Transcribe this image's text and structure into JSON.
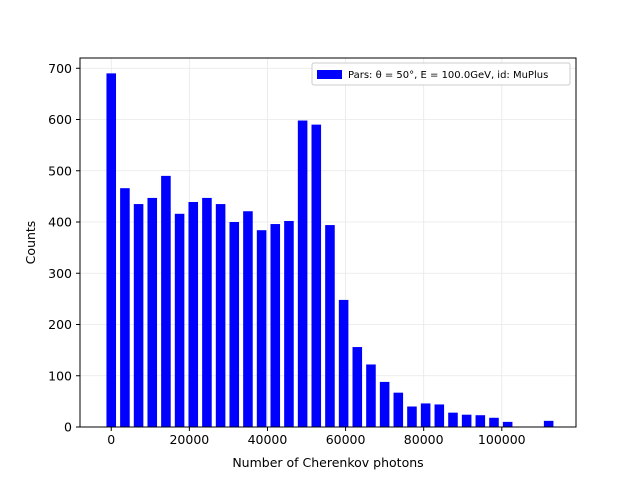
{
  "chart_data": {
    "type": "bar",
    "xlabel": "Number of Cherenkov photons",
    "ylabel": "Counts",
    "xlim": [
      -8000,
      119000
    ],
    "ylim": [
      0,
      720
    ],
    "grid": true,
    "legend_position": "top-right",
    "bar_color": "#0000ff",
    "bin_width": 3500,
    "bar_width": 2450,
    "x_ticks": [
      0,
      20000,
      40000,
      60000,
      80000,
      100000
    ],
    "x_tick_labels": [
      "0",
      "20000",
      "40000",
      "60000",
      "80000",
      "100000"
    ],
    "y_ticks": [
      0,
      100,
      200,
      300,
      400,
      500,
      600,
      700
    ],
    "y_tick_labels": [
      "0",
      "100",
      "200",
      "300",
      "400",
      "500",
      "600",
      "700"
    ],
    "series": [
      {
        "name": "Pars: θ = 50°, E = 100.0GeV, id: MuPlus",
        "x": [
          0,
          3500,
          7000,
          10500,
          14000,
          17500,
          21000,
          24500,
          28000,
          31500,
          35000,
          38500,
          42000,
          45500,
          49000,
          52500,
          56000,
          59500,
          63000,
          66500,
          70000,
          73500,
          77000,
          80500,
          84000,
          87500,
          91000,
          94500,
          98000,
          101500,
          112000
        ],
        "values": [
          690,
          466,
          435,
          447,
          490,
          416,
          439,
          447,
          435,
          400,
          421,
          384,
          396,
          402,
          598,
          590,
          394,
          248,
          156,
          122,
          88,
          67,
          40,
          46,
          44,
          28,
          24,
          23,
          18,
          10,
          12
        ]
      }
    ]
  }
}
